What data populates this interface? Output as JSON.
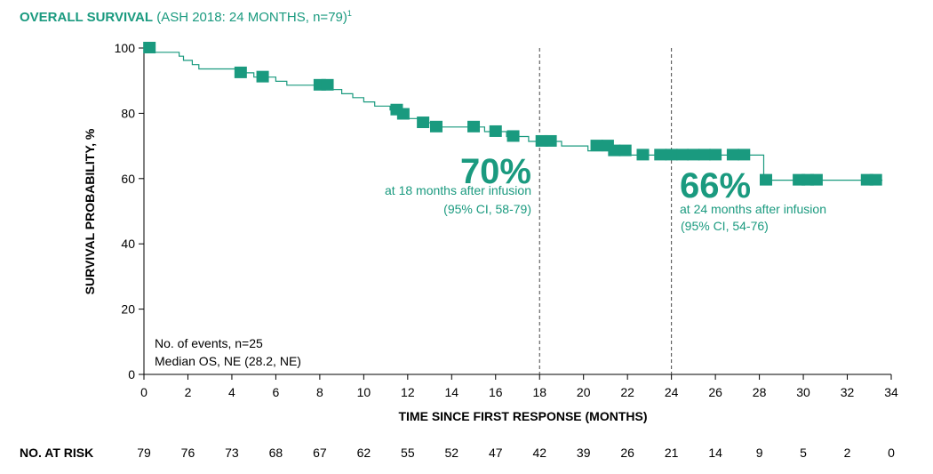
{
  "chart_data": {
    "type": "line",
    "title_bold": "OVERALL SURVIVAL",
    "title_rest": "(ASH 2018: 24 MONTHS, n=79)",
    "title_sup": "1",
    "xlabel": "TIME SINCE FIRST RESPONSE (MONTHS)",
    "ylabel": "SURVIVAL PROBABILITY, %",
    "xlim": [
      0,
      34
    ],
    "ylim": [
      0,
      100
    ],
    "xticks": [
      0,
      2,
      4,
      6,
      8,
      10,
      12,
      14,
      16,
      18,
      20,
      22,
      24,
      26,
      28,
      30,
      32,
      34
    ],
    "yticks": [
      0,
      20,
      40,
      60,
      80,
      100
    ],
    "line_color": "#1a9a7f",
    "series": [
      {
        "curve": [
          [
            0,
            100
          ],
          [
            0.5,
            100
          ],
          [
            0.5,
            98.7
          ],
          [
            1.6,
            98.7
          ],
          [
            1.6,
            97.5
          ],
          [
            1.8,
            97.5
          ],
          [
            1.8,
            96.2
          ],
          [
            2.2,
            96.2
          ],
          [
            2.2,
            94.9
          ],
          [
            2.5,
            94.9
          ],
          [
            2.5,
            93.6
          ],
          [
            4.5,
            93.6
          ],
          [
            4.5,
            92.4
          ],
          [
            5.0,
            92.4
          ],
          [
            5.0,
            91.1
          ],
          [
            6.0,
            91.1
          ],
          [
            6.0,
            89.8
          ],
          [
            6.5,
            89.8
          ],
          [
            6.5,
            88.6
          ],
          [
            8.5,
            88.6
          ],
          [
            8.5,
            87.3
          ],
          [
            9.0,
            87.3
          ],
          [
            9.0,
            86.0
          ],
          [
            9.5,
            86.0
          ],
          [
            9.5,
            84.8
          ],
          [
            10.0,
            84.8
          ],
          [
            10.0,
            83.5
          ],
          [
            10.5,
            83.5
          ],
          [
            10.5,
            82.2
          ],
          [
            11.2,
            82.2
          ],
          [
            11.2,
            81.0
          ],
          [
            11.5,
            81.0
          ],
          [
            11.5,
            79.7
          ],
          [
            11.8,
            79.7
          ],
          [
            11.8,
            78.4
          ],
          [
            12.5,
            78.4
          ],
          [
            12.5,
            77.1
          ],
          [
            13.2,
            77.1
          ],
          [
            13.2,
            75.8
          ],
          [
            15.5,
            75.8
          ],
          [
            15.5,
            74.4
          ],
          [
            16.5,
            74.4
          ],
          [
            16.5,
            72.9
          ],
          [
            17.5,
            72.9
          ],
          [
            17.5,
            71.4
          ],
          [
            19.0,
            71.4
          ],
          [
            19.0,
            70.0
          ],
          [
            20.2,
            70.0
          ],
          [
            20.2,
            68.5
          ],
          [
            22.0,
            68.5
          ],
          [
            22.0,
            67.2
          ],
          [
            28.2,
            67.2
          ],
          [
            28.2,
            59.5
          ],
          [
            33.6,
            59.5
          ]
        ],
        "censored": [
          [
            0.25,
            100
          ],
          [
            4.4,
            92.4
          ],
          [
            5.4,
            91.1
          ],
          [
            8.0,
            88.6
          ],
          [
            8.35,
            88.6
          ],
          [
            11.5,
            81.0
          ],
          [
            11.8,
            79.7
          ],
          [
            12.7,
            77.1
          ],
          [
            13.3,
            75.8
          ],
          [
            15.0,
            75.8
          ],
          [
            16.0,
            74.4
          ],
          [
            16.8,
            72.9
          ],
          [
            18.1,
            71.4
          ],
          [
            18.5,
            71.4
          ],
          [
            20.6,
            70.0
          ],
          [
            21.1,
            70.0
          ],
          [
            21.4,
            68.5
          ],
          [
            21.9,
            68.5
          ],
          [
            22.7,
            67.2
          ],
          [
            23.5,
            67.2
          ],
          [
            24.0,
            67.2
          ],
          [
            24.5,
            67.2
          ],
          [
            25.0,
            67.2
          ],
          [
            25.5,
            67.2
          ],
          [
            26.0,
            67.2
          ],
          [
            26.8,
            67.2
          ],
          [
            27.3,
            67.2
          ],
          [
            28.3,
            59.5
          ],
          [
            29.8,
            59.5
          ],
          [
            30.2,
            59.5
          ],
          [
            30.6,
            59.5
          ],
          [
            32.9,
            59.5
          ],
          [
            33.3,
            59.5
          ]
        ]
      }
    ],
    "vlines": [
      18,
      24
    ],
    "annotations": [
      {
        "big": "70%",
        "line1": "at 18 months after infusion",
        "line2": "(95% CI, 58-79)"
      },
      {
        "big": "66%",
        "line1": "at 24 months after infusion",
        "line2": "(95% CI, 54-76)"
      }
    ],
    "info_text": [
      "No. of events, n=25",
      "Median OS, NE (28.2, NE)"
    ],
    "risk_label": "NO. AT RISK",
    "risk_values": [
      79,
      76,
      73,
      68,
      67,
      62,
      55,
      52,
      47,
      42,
      39,
      26,
      21,
      14,
      9,
      5,
      2,
      0
    ]
  }
}
